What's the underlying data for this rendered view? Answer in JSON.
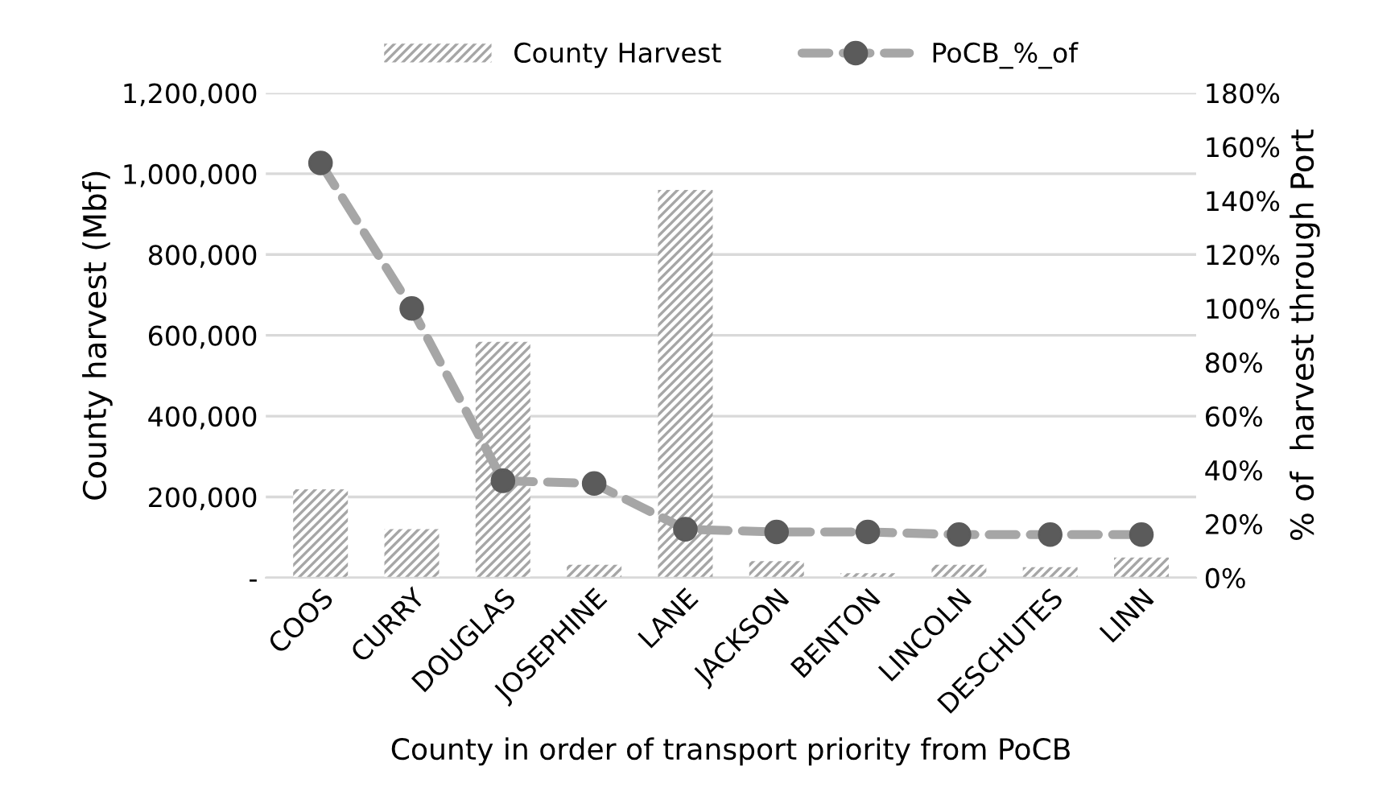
{
  "chart_data": {
    "type": "bar",
    "xlabel": "County in order of transport priority from PoCB",
    "ylabel": "County harvest (Mbf)",
    "y2label": "% of  harvest through Port",
    "categories": [
      "COOS",
      "CURRY",
      "DOUGLAS",
      "JOSEPHINE",
      "LANE",
      "JACKSON",
      "BENTON",
      "LINCOLN",
      "DESCHUTES",
      "LINN"
    ],
    "series": [
      {
        "name": "County Harvest",
        "color": "#a6a6a6",
        "values": [
          219000,
          120000,
          584000,
          32000,
          960000,
          41000,
          11000,
          32000,
          26000,
          50000
        ]
      },
      {
        "name": "PoCB_%_of",
        "type": "line",
        "axis": "y2",
        "color": "#a6a6a6",
        "marker": "circle",
        "line_style": "dashed",
        "values": [
          154,
          100,
          36,
          35,
          18,
          17,
          17,
          16,
          16,
          16
        ]
      }
    ],
    "ylim": [
      0,
      1200000
    ],
    "yticks": [
      {
        "value": 0,
        "label": "-"
      },
      {
        "value": 200000,
        "label": "200,000"
      },
      {
        "value": 400000,
        "label": "400,000"
      },
      {
        "value": 600000,
        "label": "600,000"
      },
      {
        "value": 800000,
        "label": "800,000"
      },
      {
        "value": 1000000,
        "label": "1,000,000"
      },
      {
        "value": 1200000,
        "label": "1,200,000"
      }
    ],
    "y2lim": [
      0,
      180
    ],
    "y2ticks": [
      {
        "value": 0,
        "label": "0%"
      },
      {
        "value": 20,
        "label": "20%"
      },
      {
        "value": 40,
        "label": "40%"
      },
      {
        "value": 60,
        "label": "60%"
      },
      {
        "value": 80,
        "label": "80%"
      },
      {
        "value": 100,
        "label": "100%"
      },
      {
        "value": 120,
        "label": "120%"
      },
      {
        "value": 140,
        "label": "140%"
      },
      {
        "value": 160,
        "label": "160%"
      },
      {
        "value": 180,
        "label": "180%"
      }
    ],
    "grid": "y",
    "legend": "top"
  }
}
